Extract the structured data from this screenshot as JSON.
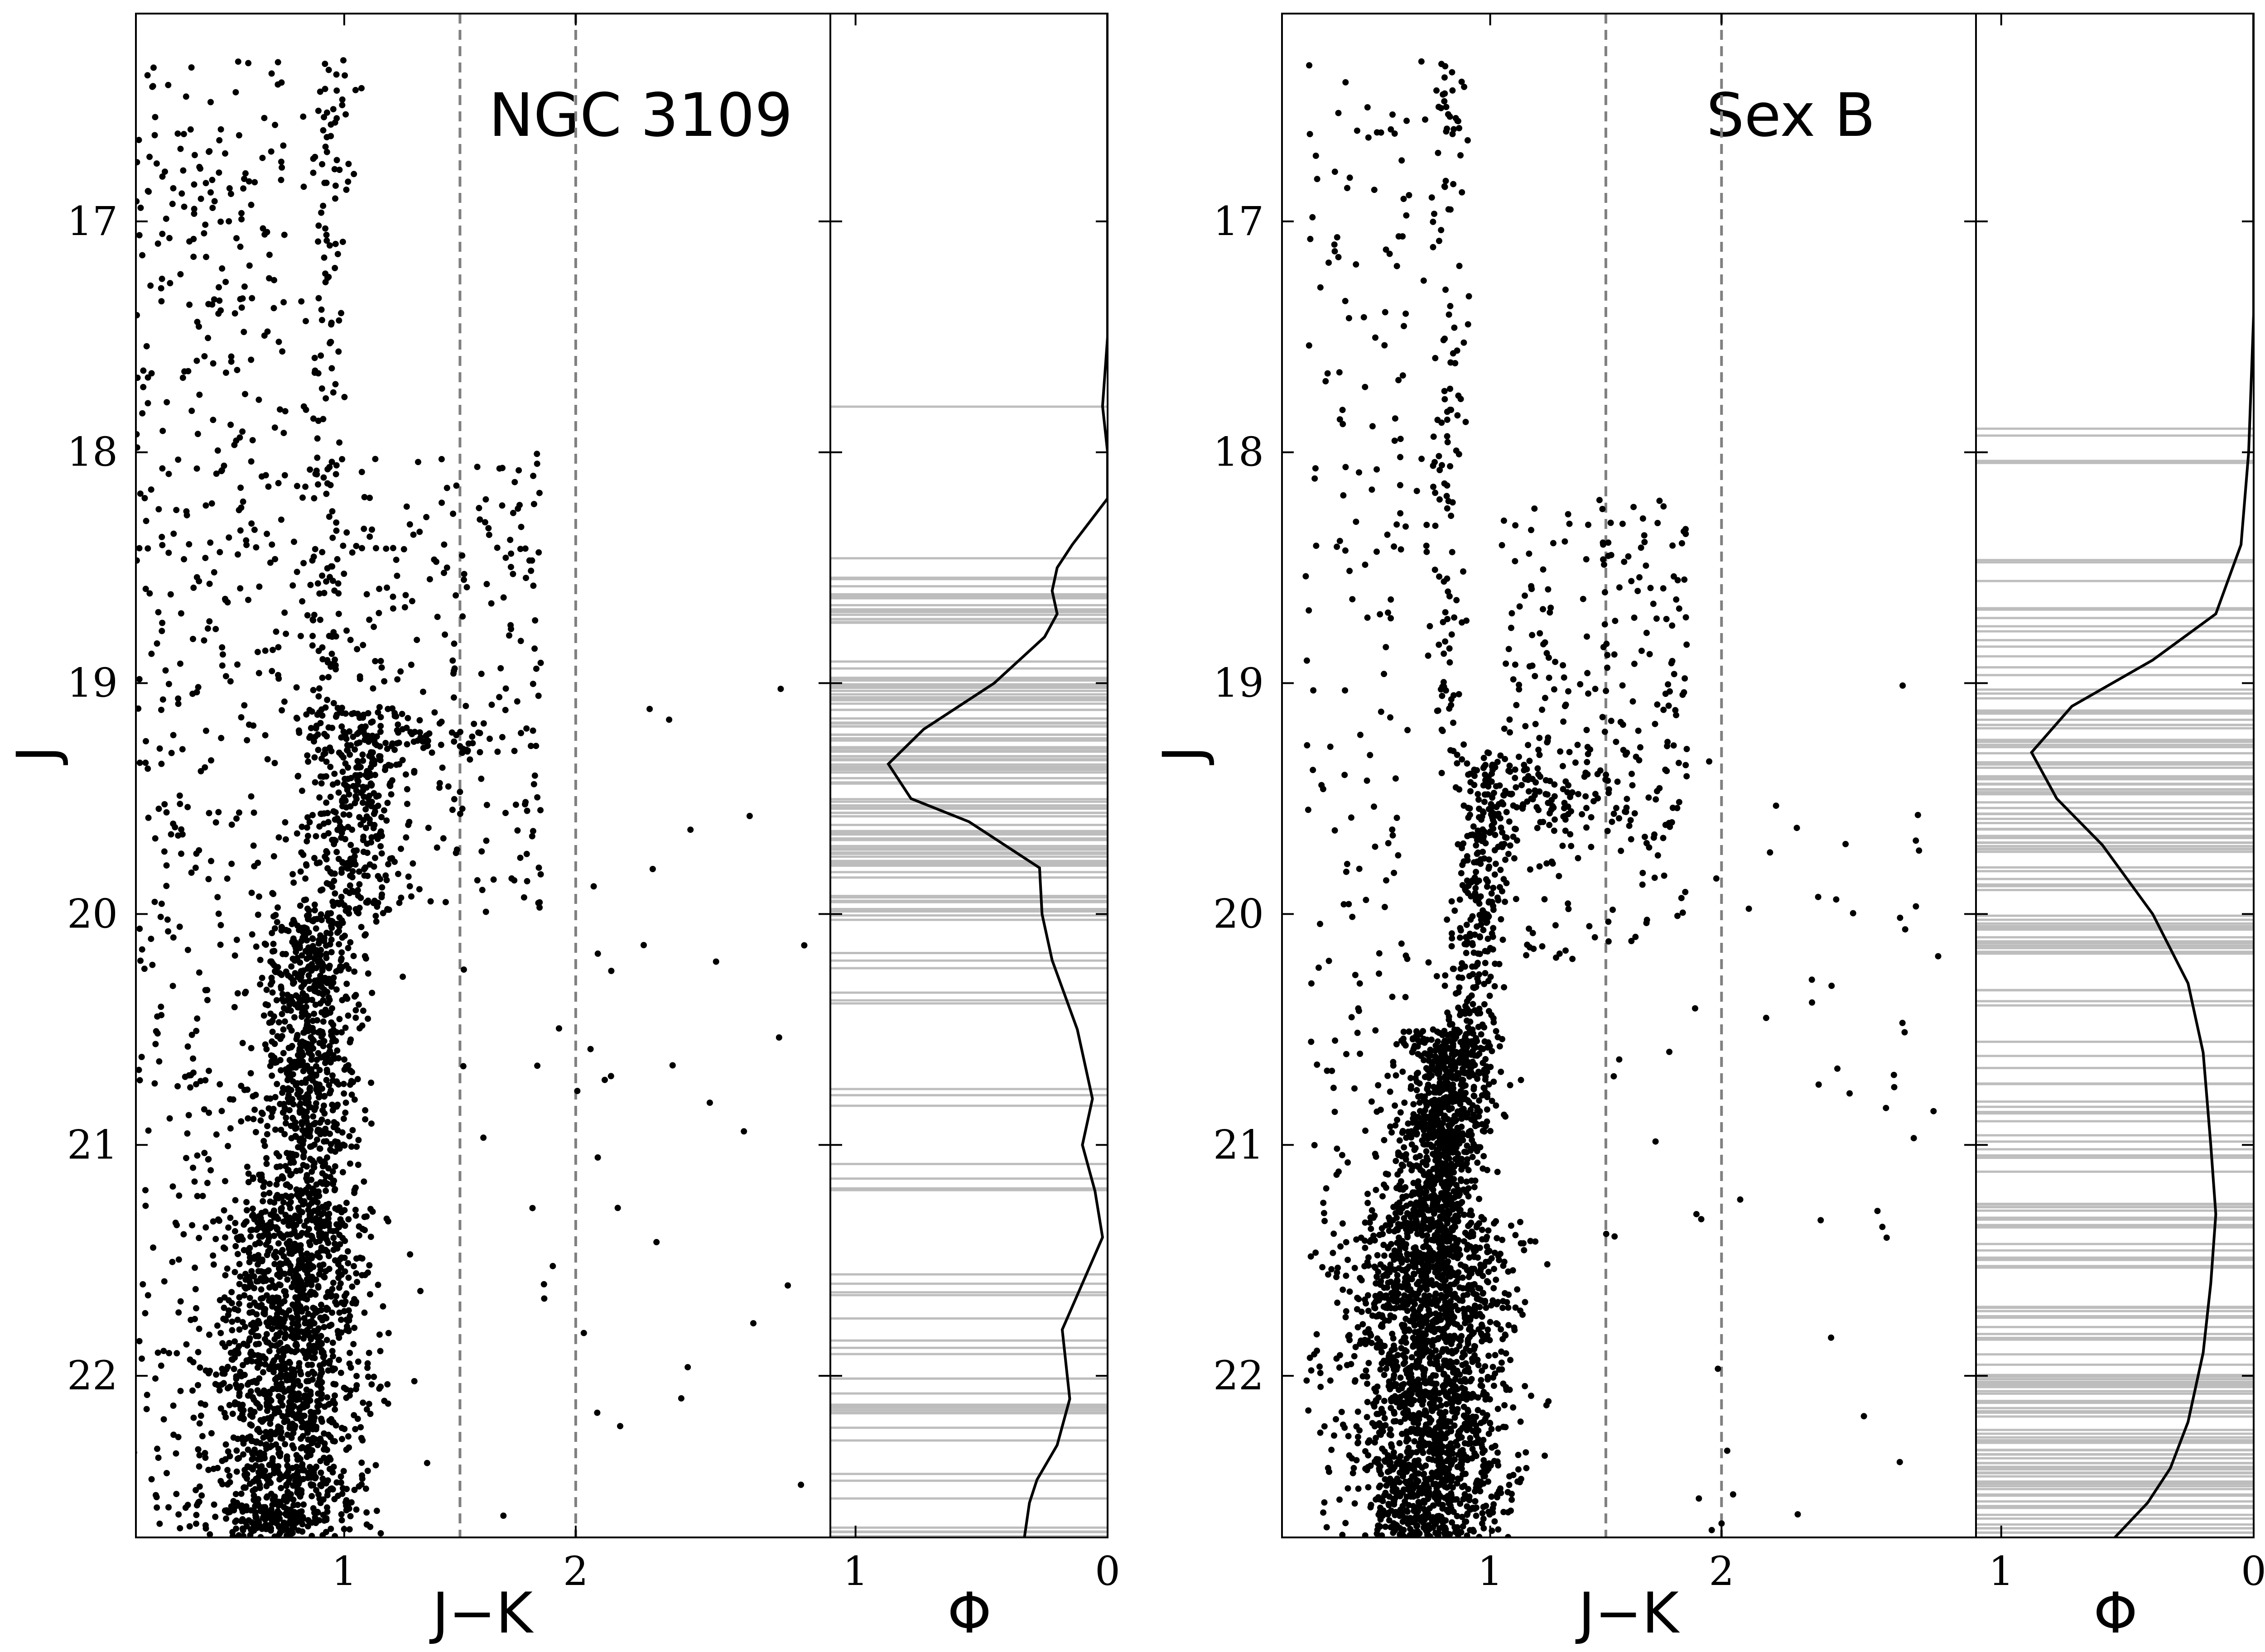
{
  "chart_data": [
    {
      "type": "scatter",
      "panel": "cmd",
      "title": "NGC 3109",
      "xlabel": "J−K",
      "ylabel": "J",
      "xlim": [
        0.1,
        3.1
      ],
      "ylim": [
        22.7,
        16.1
      ],
      "xticks": [
        "1",
        "2"
      ],
      "yticks": [
        "17",
        "18",
        "19",
        "20",
        "21",
        "22"
      ],
      "reference_lines_x": [
        1.5,
        2.0
      ],
      "sequences": [
        {
          "j0": 16.3,
          "j1": 18.0,
          "x0": 0.96,
          "x1": 0.92,
          "spread": 0.05,
          "n": 90
        },
        {
          "j0": 18.0,
          "j1": 20.3,
          "x0": 0.92,
          "x1": 0.88,
          "spread": 0.06,
          "n": 220
        },
        {
          "j0": 19.1,
          "j1": 20.0,
          "x0": 1.08,
          "x1": 1.05,
          "spread": 0.08,
          "n": 260
        },
        {
          "j0": 20.0,
          "j1": 21.3,
          "x0": 0.88,
          "x1": 0.82,
          "spread": 0.11,
          "n": 750
        },
        {
          "j0": 21.3,
          "j1": 22.7,
          "x0": 0.8,
          "x1": 0.72,
          "spread": 0.17,
          "n": 1500
        }
      ],
      "field": [
        {
          "j0": 16.3,
          "j1": 22.7,
          "x0": 0.1,
          "x1": 0.75,
          "n": 560
        },
        {
          "j0": 18.0,
          "j1": 20.0,
          "x0": 1.05,
          "x1": 1.85,
          "n": 220
        },
        {
          "j0": 19.0,
          "j1": 22.7,
          "x0": 1.5,
          "x1": 3.0,
          "n": 45
        }
      ],
      "clumps": [
        {
          "x": 1.3,
          "j": 19.25,
          "sx": 0.2,
          "sj": 0.05,
          "n": 60
        }
      ]
    },
    {
      "type": "line",
      "panel": "lf",
      "xlabel": "Φ",
      "xlim": [
        1.1,
        0
      ],
      "ylim": [
        22.7,
        16.1
      ],
      "xticks": [
        "1",
        "0"
      ],
      "curve": [
        {
          "j": 16.1,
          "phi": 0.0
        },
        {
          "j": 17.5,
          "phi": 0.0
        },
        {
          "j": 17.8,
          "phi": 0.02
        },
        {
          "j": 18.0,
          "phi": 0.0
        },
        {
          "j": 18.2,
          "phi": 0.0
        },
        {
          "j": 18.4,
          "phi": 0.14
        },
        {
          "j": 18.5,
          "phi": 0.2
        },
        {
          "j": 18.6,
          "phi": 0.22
        },
        {
          "j": 18.7,
          "phi": 0.2
        },
        {
          "j": 18.8,
          "phi": 0.25
        },
        {
          "j": 19.0,
          "phi": 0.45
        },
        {
          "j": 19.2,
          "phi": 0.73
        },
        {
          "j": 19.35,
          "phi": 0.87
        },
        {
          "j": 19.5,
          "phi": 0.78
        },
        {
          "j": 19.6,
          "phi": 0.55
        },
        {
          "j": 19.8,
          "phi": 0.27
        },
        {
          "j": 20.0,
          "phi": 0.26
        },
        {
          "j": 20.2,
          "phi": 0.22
        },
        {
          "j": 20.5,
          "phi": 0.12
        },
        {
          "j": 20.8,
          "phi": 0.06
        },
        {
          "j": 21.0,
          "phi": 0.1
        },
        {
          "j": 21.2,
          "phi": 0.05
        },
        {
          "j": 21.4,
          "phi": 0.02
        },
        {
          "j": 21.6,
          "phi": 0.1
        },
        {
          "j": 21.8,
          "phi": 0.18
        },
        {
          "j": 22.1,
          "phi": 0.15
        },
        {
          "j": 22.3,
          "phi": 0.2
        },
        {
          "j": 22.45,
          "phi": 0.28
        },
        {
          "j": 22.55,
          "phi": 0.31
        },
        {
          "j": 22.7,
          "phi": 0.33
        }
      ],
      "stars": [
        {
          "j0": 17.78,
          "j1": 17.82,
          "n": 1
        },
        {
          "j0": 18.45,
          "j1": 18.75,
          "n": 18
        },
        {
          "j0": 18.9,
          "j1": 19.85,
          "n": 75
        },
        {
          "j0": 19.9,
          "j1": 20.05,
          "n": 10
        },
        {
          "j0": 20.15,
          "j1": 21.2,
          "n": 14
        },
        {
          "j0": 21.55,
          "j1": 22.7,
          "n": 26
        }
      ]
    },
    {
      "type": "scatter",
      "panel": "cmd",
      "title": "Sex B",
      "xlabel": "J−K",
      "ylabel": "J",
      "xlim": [
        0.1,
        3.1
      ],
      "ylim": [
        22.7,
        16.1
      ],
      "xticks": [
        "1",
        "2"
      ],
      "yticks": [
        "17",
        "18",
        "19",
        "20",
        "21",
        "22"
      ],
      "reference_lines_x": [
        1.5,
        2.0
      ],
      "sequences": [
        {
          "j0": 16.3,
          "j1": 19.3,
          "x0": 0.82,
          "x1": 0.8,
          "spread": 0.05,
          "n": 140
        },
        {
          "j0": 19.3,
          "j1": 20.5,
          "x0": 1.0,
          "x1": 0.9,
          "spread": 0.06,
          "n": 280
        },
        {
          "j0": 20.5,
          "j1": 21.3,
          "x0": 0.85,
          "x1": 0.75,
          "spread": 0.1,
          "n": 850
        },
        {
          "j0": 21.3,
          "j1": 22.7,
          "x0": 0.75,
          "x1": 0.75,
          "spread": 0.16,
          "n": 1900
        }
      ],
      "field": [
        {
          "j0": 16.3,
          "j1": 22.7,
          "x0": 0.2,
          "x1": 0.65,
          "n": 240
        },
        {
          "j0": 18.2,
          "j1": 20.2,
          "x0": 1.05,
          "x1": 1.85,
          "n": 260
        },
        {
          "j0": 19.0,
          "j1": 22.7,
          "x0": 1.5,
          "x1": 3.0,
          "n": 60
        }
      ],
      "clumps": [
        {
          "x": 1.25,
          "j": 19.5,
          "sx": 0.18,
          "sj": 0.12,
          "n": 110
        }
      ]
    },
    {
      "type": "line",
      "panel": "lf",
      "xlabel": "Φ",
      "xlim": [
        1.1,
        0
      ],
      "ylim": [
        22.7,
        16.1
      ],
      "xticks": [
        "1",
        "0"
      ],
      "curve": [
        {
          "j": 16.1,
          "phi": 0.0
        },
        {
          "j": 17.4,
          "phi": 0.0
        },
        {
          "j": 18.0,
          "phi": 0.02
        },
        {
          "j": 18.4,
          "phi": 0.05
        },
        {
          "j": 18.7,
          "phi": 0.15
        },
        {
          "j": 18.9,
          "phi": 0.4
        },
        {
          "j": 19.1,
          "phi": 0.72
        },
        {
          "j": 19.3,
          "phi": 0.88
        },
        {
          "j": 19.5,
          "phi": 0.78
        },
        {
          "j": 19.7,
          "phi": 0.6
        },
        {
          "j": 20.0,
          "phi": 0.4
        },
        {
          "j": 20.3,
          "phi": 0.26
        },
        {
          "j": 20.6,
          "phi": 0.2
        },
        {
          "j": 21.0,
          "phi": 0.17
        },
        {
          "j": 21.3,
          "phi": 0.15
        },
        {
          "j": 21.6,
          "phi": 0.17
        },
        {
          "j": 21.9,
          "phi": 0.2
        },
        {
          "j": 22.2,
          "phi": 0.26
        },
        {
          "j": 22.4,
          "phi": 0.33
        },
        {
          "j": 22.55,
          "phi": 0.42
        },
        {
          "j": 22.7,
          "phi": 0.55
        }
      ],
      "stars": [
        {
          "j0": 17.8,
          "j1": 18.15,
          "n": 4
        },
        {
          "j0": 18.45,
          "j1": 18.9,
          "n": 12
        },
        {
          "j0": 18.9,
          "j1": 19.9,
          "n": 55
        },
        {
          "j0": 20.0,
          "j1": 20.2,
          "n": 16
        },
        {
          "j0": 20.3,
          "j1": 21.2,
          "n": 20
        },
        {
          "j0": 21.25,
          "j1": 22.1,
          "n": 40
        },
        {
          "j0": 22.1,
          "j1": 22.7,
          "n": 45
        }
      ]
    }
  ]
}
